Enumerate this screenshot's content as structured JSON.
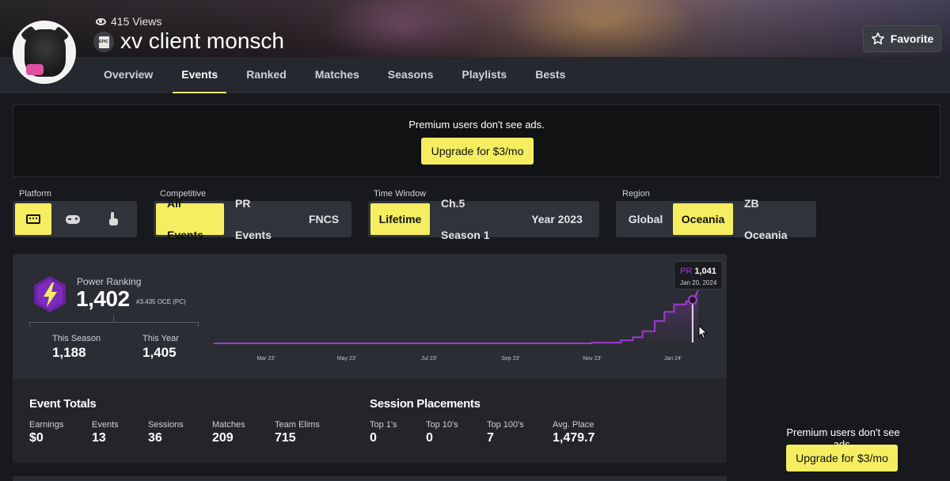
{
  "header": {
    "views": "415 Views",
    "player_name": "xv client monsch",
    "favorite_label": "Favorite",
    "epic_badge": "EPIC"
  },
  "tabs": [
    {
      "label": "Overview"
    },
    {
      "label": "Events",
      "active": true
    },
    {
      "label": "Ranked"
    },
    {
      "label": "Matches"
    },
    {
      "label": "Seasons"
    },
    {
      "label": "Playlists"
    },
    {
      "label": "Bests"
    }
  ],
  "ad": {
    "text": "Premium users don't see ads.",
    "button": "Upgrade for $3/mo"
  },
  "filters": {
    "platform": {
      "label": "Platform",
      "options": [
        "keyboard-icon",
        "gamepad-icon",
        "touch-icon"
      ],
      "selected": "keyboard-icon"
    },
    "competitive": {
      "label": "Competitive",
      "options": [
        "All Events",
        "PR Events",
        "FNCS"
      ],
      "selected": "All Events"
    },
    "time_window": {
      "label": "Time Window",
      "options": [
        "Lifetime",
        "Ch.5 Season 1",
        "Year 2023"
      ],
      "selected": "Lifetime"
    },
    "region": {
      "label": "Region",
      "options": [
        "Global",
        "Oceania",
        "ZB Oceania"
      ],
      "selected": "Oceania"
    }
  },
  "power_ranking": {
    "label": "Power Ranking",
    "value": "1,402",
    "rank": "#3,435 OCE (PC)",
    "this_season_label": "This Season",
    "this_season_value": "1,188",
    "this_year_label": "This Year",
    "this_year_value": "1,405"
  },
  "tooltip": {
    "pr_label": "PR",
    "pr_value": "1,041",
    "date": "Jan 20, 2024"
  },
  "chart_data": {
    "type": "line",
    "x_ticks": [
      "Mar 23'",
      "May 23'",
      "Jul 23'",
      "Sep 23'",
      "Nov 23'",
      "Jan 24'"
    ],
    "series": [
      {
        "color": "#a13ad1",
        "points": [
          {
            "t": 0.0,
            "v": 0
          },
          {
            "t": 0.2,
            "v": 0
          },
          {
            "t": 0.4,
            "v": 0
          },
          {
            "t": 0.6,
            "v": 0
          },
          {
            "t": 0.72,
            "v": 0
          },
          {
            "t": 0.78,
            "v": 10
          },
          {
            "t": 0.84,
            "v": 40
          },
          {
            "t": 0.865,
            "v": 80
          },
          {
            "t": 0.885,
            "v": 160
          },
          {
            "t": 0.91,
            "v": 300
          },
          {
            "t": 0.93,
            "v": 420
          },
          {
            "t": 0.95,
            "v": 520
          },
          {
            "t": 0.975,
            "v": 560
          },
          {
            "t": 0.99,
            "v": 580
          },
          {
            "t": 1.0,
            "v": 1041
          }
        ]
      }
    ],
    "highlight": {
      "label": "PR 1,041",
      "date": "Jan 20, 2024"
    },
    "grid": false
  },
  "event_totals": {
    "title": "Event Totals",
    "stats": [
      {
        "label": "Earnings",
        "value": "$0"
      },
      {
        "label": "Events",
        "value": "13"
      },
      {
        "label": "Sessions",
        "value": "36"
      },
      {
        "label": "Matches",
        "value": "209"
      },
      {
        "label": "Team Elims",
        "value": "715"
      }
    ]
  },
  "session_placements": {
    "title": "Session Placements",
    "stats": [
      {
        "label": "Top 1's",
        "value": "0"
      },
      {
        "label": "Top 10's",
        "value": "0"
      },
      {
        "label": "Top 100's",
        "value": "7"
      },
      {
        "label": "Avg. Place",
        "value": "1,479.7"
      }
    ]
  },
  "side_ad": {
    "text": "Premium users don't see ads.",
    "button": "Upgrade for $3/mo"
  },
  "colors": {
    "accent": "#f5ee60",
    "purple": "#a13ad1",
    "panel": "#2a2d33",
    "bg": "#17191d"
  }
}
